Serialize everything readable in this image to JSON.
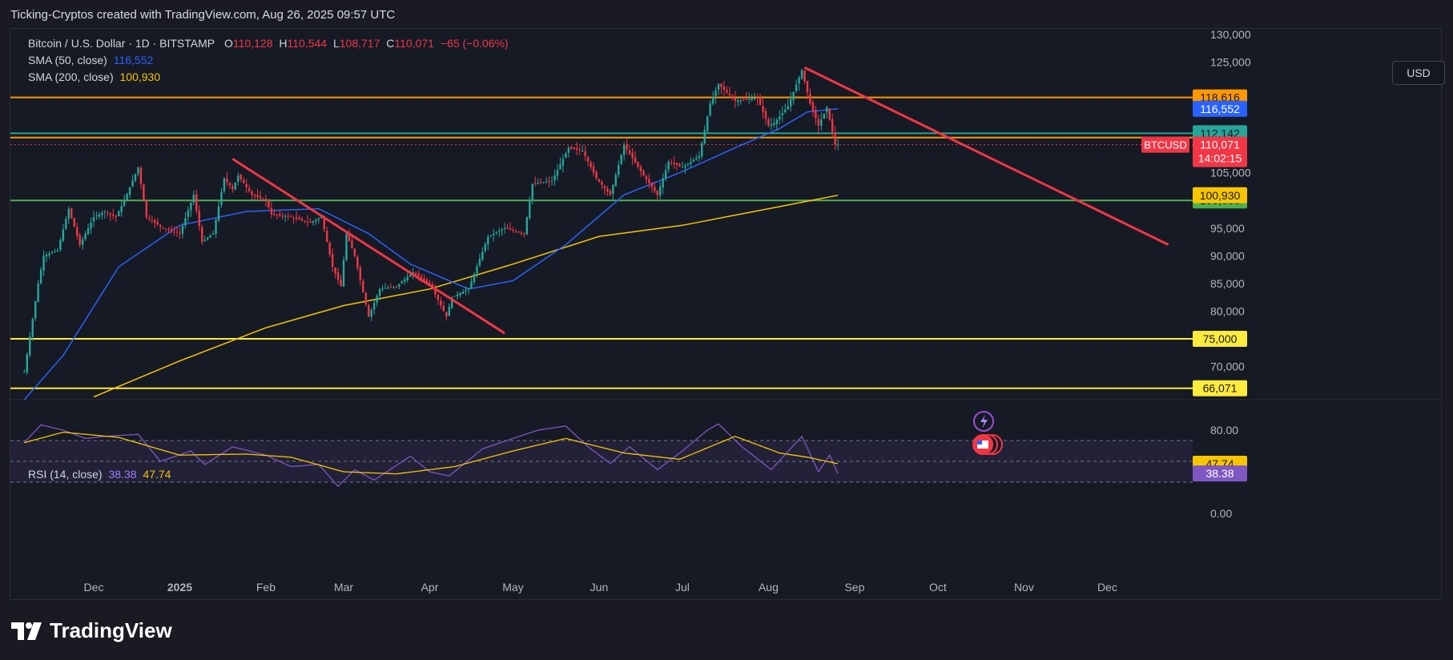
{
  "caption": "Ticking-Cryptos created with TradingView.com, Aug 26, 2025 09:57 UTC",
  "legend": {
    "symbol": "Bitcoin / U.S. Dollar · 1D · BITSTAMP",
    "o_label": "O",
    "o": "110,128",
    "h_label": "H",
    "h": "110,544",
    "l_label": "L",
    "l": "108,717",
    "c_label": "C",
    "c": "110,071",
    "change": "−65 (−0.06%)",
    "sma50_label": "SMA (50, close)",
    "sma50": "116,552",
    "sma200_label": "SMA (200, close)",
    "sma200": "100,930",
    "rsi_label": "RSI (14, close)",
    "rsi": "38.38",
    "rsi_ma": "47.74"
  },
  "currency_button": "USD",
  "brand": "TradingView",
  "colors": {
    "up": "#26a69a",
    "down": "#f23645",
    "sma50": "#2962ff",
    "sma200": "#f7c600",
    "trend": "#f23645",
    "rsi": "#7e57c2",
    "orange": "#ff9800",
    "green_level": "#4caf50",
    "yellow_level": "#ffeb3b",
    "teal_level": "#26a69a"
  },
  "chart_data": {
    "type": "candlestick",
    "price_axis": {
      "min": 64000,
      "max": 131000,
      "ticks": [
        "130,000",
        "125,000",
        "105,000",
        "95,000",
        "90,000",
        "85,000",
        "80,000",
        "70,000"
      ]
    },
    "tick_values": [
      130000,
      125000,
      105000,
      95000,
      90000,
      85000,
      80000,
      70000
    ],
    "time_axis": {
      "labels": [
        "Dec",
        "2025",
        "Feb",
        "Mar",
        "Apr",
        "May",
        "Jun",
        "Jul",
        "Aug",
        "Sep",
        "Oct",
        "Nov",
        "Dec"
      ],
      "dates": [
        "2024-12-01",
        "2025-01-01",
        "2025-02-01",
        "2025-03-01",
        "2025-04-01",
        "2025-05-01",
        "2025-06-01",
        "2025-07-01",
        "2025-08-01",
        "2025-09-01",
        "2025-10-01",
        "2025-11-01",
        "2025-12-01"
      ]
    },
    "horizontal_levels": [
      {
        "value": 118616,
        "label": "118,616",
        "color": "#ff9800"
      },
      {
        "value": 111350,
        "label": "111,350",
        "color": "#ff9800"
      },
      {
        "value": 112142,
        "label": "112,142",
        "color": "#26a69a"
      },
      {
        "value": 100000,
        "label": "100,000",
        "color": "#4caf50"
      },
      {
        "value": 75000,
        "label": "75,000",
        "color": "#ffeb3b"
      },
      {
        "value": 66071,
        "label": "66,071",
        "color": "#ffeb3b"
      }
    ],
    "price_tags": [
      {
        "value": 116552,
        "label": "116,552",
        "color": "#2962ff"
      },
      {
        "value": 100930,
        "label": "100,930",
        "color": "#f7c600"
      }
    ],
    "last_price": {
      "value": 110071,
      "label": "110,071",
      "symbol": "BTCUSD",
      "countdown": "14:02:15"
    },
    "trendlines": [
      {
        "from": [
          "2025-01-20",
          107500
        ],
        "to": [
          "2025-04-28",
          76000
        ]
      },
      {
        "from": [
          "2025-08-14",
          124000
        ],
        "to": [
          "2025-12-23",
          92000
        ]
      }
    ],
    "close_series": [
      [
        "2024-11-06",
        69000
      ],
      [
        "2024-11-11",
        85000
      ],
      [
        "2024-11-13",
        90000
      ],
      [
        "2024-11-18",
        91000
      ],
      [
        "2024-11-22",
        98500
      ],
      [
        "2024-11-26",
        92000
      ],
      [
        "2024-12-01",
        97000
      ],
      [
        "2024-12-05",
        98000
      ],
      [
        "2024-12-09",
        97000
      ],
      [
        "2024-12-12",
        100000
      ],
      [
        "2024-12-17",
        106000
      ],
      [
        "2024-12-20",
        97000
      ],
      [
        "2024-12-26",
        95000
      ],
      [
        "2025-01-01",
        94000
      ],
      [
        "2025-01-06",
        101000
      ],
      [
        "2025-01-09",
        92500
      ],
      [
        "2025-01-13",
        94000
      ],
      [
        "2025-01-17",
        104000
      ],
      [
        "2025-01-20",
        102000
      ],
      [
        "2025-01-22",
        104500
      ],
      [
        "2025-01-27",
        101000
      ],
      [
        "2025-02-01",
        100000
      ],
      [
        "2025-02-03",
        97500
      ],
      [
        "2025-02-10",
        97000
      ],
      [
        "2025-02-17",
        96000
      ],
      [
        "2025-02-21",
        97000
      ],
      [
        "2025-02-25",
        88000
      ],
      [
        "2025-02-28",
        84500
      ],
      [
        "2025-03-02",
        94000
      ],
      [
        "2025-03-05",
        90000
      ],
      [
        "2025-03-10",
        79000
      ],
      [
        "2025-03-14",
        84000
      ],
      [
        "2025-03-20",
        84500
      ],
      [
        "2025-03-26",
        87000
      ],
      [
        "2025-04-01",
        85000
      ],
      [
        "2025-04-07",
        79000
      ],
      [
        "2025-04-09",
        82500
      ],
      [
        "2025-04-15",
        84000
      ],
      [
        "2025-04-22",
        93500
      ],
      [
        "2025-04-28",
        95000
      ],
      [
        "2025-05-05",
        94000
      ],
      [
        "2025-05-08",
        103000
      ],
      [
        "2025-05-15",
        103500
      ],
      [
        "2025-05-21",
        109500
      ],
      [
        "2025-05-26",
        109000
      ],
      [
        "2025-05-31",
        104000
      ],
      [
        "2025-06-05",
        101000
      ],
      [
        "2025-06-10",
        110000
      ],
      [
        "2025-06-17",
        104500
      ],
      [
        "2025-06-22",
        101000
      ],
      [
        "2025-06-26",
        107000
      ],
      [
        "2025-07-01",
        106000
      ],
      [
        "2025-07-07",
        108000
      ],
      [
        "2025-07-11",
        117500
      ],
      [
        "2025-07-14",
        121000
      ],
      [
        "2025-07-20",
        118000
      ],
      [
        "2025-07-28",
        118500
      ],
      [
        "2025-08-01",
        113500
      ],
      [
        "2025-08-03",
        114000
      ],
      [
        "2025-08-08",
        117000
      ],
      [
        "2025-08-13",
        123500
      ],
      [
        "2025-08-16",
        117500
      ],
      [
        "2025-08-19",
        113500
      ],
      [
        "2025-08-22",
        116800
      ],
      [
        "2025-08-25",
        110100
      ],
      [
        "2025-08-26",
        110071
      ]
    ],
    "sma50_series": [
      [
        "2024-11-06",
        64000
      ],
      [
        "2024-11-20",
        72000
      ],
      [
        "2024-12-10",
        88000
      ],
      [
        "2025-01-01",
        95500
      ],
      [
        "2025-01-25",
        98000
      ],
      [
        "2025-02-20",
        98500
      ],
      [
        "2025-03-10",
        94000
      ],
      [
        "2025-03-25",
        88500
      ],
      [
        "2025-04-15",
        84000
      ],
      [
        "2025-05-01",
        85500
      ],
      [
        "2025-05-20",
        92000
      ],
      [
        "2025-06-10",
        101000
      ],
      [
        "2025-06-30",
        105000
      ],
      [
        "2025-07-20",
        109500
      ],
      [
        "2025-08-05",
        113000
      ],
      [
        "2025-08-15",
        116000
      ],
      [
        "2025-08-26",
        116552
      ]
    ],
    "sma200_series": [
      [
        "2024-12-01",
        64500
      ],
      [
        "2025-01-01",
        71000
      ],
      [
        "2025-02-01",
        77000
      ],
      [
        "2025-03-01",
        81000
      ],
      [
        "2025-04-01",
        84000
      ],
      [
        "2025-05-01",
        88500
      ],
      [
        "2025-06-01",
        93500
      ],
      [
        "2025-07-01",
        95500
      ],
      [
        "2025-08-01",
        98500
      ],
      [
        "2025-08-26",
        100930
      ]
    ],
    "rsi_panel": {
      "min": 0,
      "max": 100,
      "ticks": [
        "80.00",
        "0.00"
      ],
      "tick_values": [
        80,
        0
      ],
      "band": [
        30,
        70
      ],
      "rsi_series": [
        [
          "2024-11-06",
          68
        ],
        [
          "2024-11-12",
          85
        ],
        [
          "2024-11-20",
          80
        ],
        [
          "2024-11-28",
          72
        ],
        [
          "2024-12-05",
          74
        ],
        [
          "2024-12-17",
          76
        ],
        [
          "2024-12-25",
          50
        ],
        [
          "2025-01-05",
          60
        ],
        [
          "2025-01-10",
          47
        ],
        [
          "2025-01-20",
          64
        ],
        [
          "2025-02-01",
          56
        ],
        [
          "2025-02-10",
          45
        ],
        [
          "2025-02-20",
          47
        ],
        [
          "2025-02-27",
          26
        ],
        [
          "2025-03-05",
          42
        ],
        [
          "2025-03-12",
          32
        ],
        [
          "2025-03-25",
          55
        ],
        [
          "2025-04-01",
          40
        ],
        [
          "2025-04-08",
          36
        ],
        [
          "2025-04-20",
          62
        ],
        [
          "2025-05-01",
          72
        ],
        [
          "2025-05-10",
          80
        ],
        [
          "2025-05-20",
          84
        ],
        [
          "2025-05-28",
          64
        ],
        [
          "2025-06-05",
          48
        ],
        [
          "2025-06-12",
          64
        ],
        [
          "2025-06-22",
          42
        ],
        [
          "2025-07-01",
          60
        ],
        [
          "2025-07-10",
          80
        ],
        [
          "2025-07-14",
          86
        ],
        [
          "2025-07-22",
          65
        ],
        [
          "2025-08-02",
          42
        ],
        [
          "2025-08-13",
          74
        ],
        [
          "2025-08-19",
          40
        ],
        [
          "2025-08-23",
          56
        ],
        [
          "2025-08-26",
          38.38
        ]
      ],
      "rsi_ma_series": [
        [
          "2024-11-06",
          68
        ],
        [
          "2024-11-20",
          78
        ],
        [
          "2024-12-10",
          73
        ],
        [
          "2025-01-01",
          56
        ],
        [
          "2025-01-25",
          57
        ],
        [
          "2025-02-10",
          54
        ],
        [
          "2025-03-01",
          40
        ],
        [
          "2025-03-20",
          38
        ],
        [
          "2025-04-10",
          45
        ],
        [
          "2025-05-01",
          60
        ],
        [
          "2025-05-20",
          72
        ],
        [
          "2025-06-10",
          58
        ],
        [
          "2025-06-30",
          52
        ],
        [
          "2025-07-20",
          74
        ],
        [
          "2025-08-05",
          58
        ],
        [
          "2025-08-15",
          54
        ],
        [
          "2025-08-26",
          47.74
        ]
      ]
    }
  }
}
